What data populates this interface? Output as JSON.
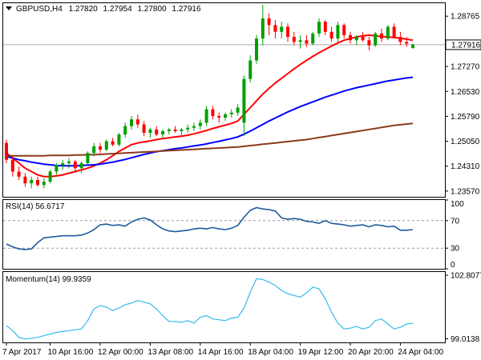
{
  "header": {
    "symbol_tf": "GBPUSD,H4",
    "open": "1.27820",
    "high": "1.27954",
    "low": "1.27800",
    "close": "1.27916"
  },
  "colors": {
    "bull": "#00a000",
    "bear": "#ff0000",
    "sma20": "#ff0000",
    "sma50": "#0000ff",
    "sma200": "#8b3a1a",
    "rsi": "#1e5aa0",
    "momentum": "#33bbee",
    "grid": "#c8c8c8",
    "price_tag_bg": "#ffffff"
  },
  "chart_data": [
    {
      "type": "candlestick",
      "title": "GBPUSD,H4",
      "ylim": [
        1.234,
        1.2915
      ],
      "y_ticks": [
        "1.28765",
        "1.27916",
        "1.27270",
        "1.26530",
        "1.25790",
        "1.25050",
        "1.24310",
        "1.23570"
      ],
      "current_price": "1.27916",
      "candles": [
        [
          1.25,
          1.251,
          1.244,
          1.245
        ],
        [
          1.245,
          1.246,
          1.24,
          1.2415
        ],
        [
          1.2415,
          1.243,
          1.239,
          1.24
        ],
        [
          1.24,
          1.241,
          1.237,
          1.238
        ],
        [
          1.238,
          1.24,
          1.2365,
          1.239
        ],
        [
          1.239,
          1.24,
          1.237,
          1.2375
        ],
        [
          1.2375,
          1.2395,
          1.2365,
          1.2385
        ],
        [
          1.2385,
          1.242,
          1.238,
          1.2415
        ],
        [
          1.2415,
          1.244,
          1.2405,
          1.2435
        ],
        [
          1.2435,
          1.245,
          1.242,
          1.244
        ],
        [
          1.244,
          1.2455,
          1.2425,
          1.2445
        ],
        [
          1.2445,
          1.245,
          1.2415,
          1.2425
        ],
        [
          1.2425,
          1.2445,
          1.241,
          1.244
        ],
        [
          1.244,
          1.2475,
          1.2435,
          1.247
        ],
        [
          1.247,
          1.25,
          1.246,
          1.249
        ],
        [
          1.249,
          1.25,
          1.247,
          1.248
        ],
        [
          1.248,
          1.251,
          1.2475,
          1.2505
        ],
        [
          1.2505,
          1.2515,
          1.249,
          1.2495
        ],
        [
          1.2495,
          1.253,
          1.249,
          1.2525
        ],
        [
          1.2525,
          1.256,
          1.2515,
          1.255
        ],
        [
          1.255,
          1.258,
          1.254,
          1.257
        ],
        [
          1.257,
          1.2585,
          1.2545,
          1.2555
        ],
        [
          1.2555,
          1.2565,
          1.252,
          1.253
        ],
        [
          1.253,
          1.2545,
          1.2515,
          1.254
        ],
        [
          1.254,
          1.255,
          1.252,
          1.2525
        ],
        [
          1.2525,
          1.254,
          1.2515,
          1.2535
        ],
        [
          1.2535,
          1.2545,
          1.2525,
          1.254
        ],
        [
          1.254,
          1.255,
          1.253,
          1.2535
        ],
        [
          1.2535,
          1.2545,
          1.252,
          1.254
        ],
        [
          1.254,
          1.2555,
          1.253,
          1.2545
        ],
        [
          1.2545,
          1.256,
          1.2535,
          1.255
        ],
        [
          1.255,
          1.257,
          1.254,
          1.256
        ],
        [
          1.256,
          1.261,
          1.255,
          1.26
        ],
        [
          1.26,
          1.261,
          1.257,
          1.258
        ],
        [
          1.258,
          1.259,
          1.256,
          1.2575
        ],
        [
          1.2575,
          1.259,
          1.2565,
          1.2585
        ],
        [
          1.2585,
          1.26,
          1.2575,
          1.259
        ],
        [
          1.259,
          1.2615,
          1.258,
          1.2605
        ],
        [
          1.256,
          1.27,
          1.252,
          1.269
        ],
        [
          1.269,
          1.276,
          1.268,
          1.2745
        ],
        [
          1.2745,
          1.282,
          1.2735,
          1.281
        ],
        [
          1.281,
          1.291,
          1.279,
          1.287
        ],
        [
          1.287,
          1.2885,
          1.282,
          1.285
        ],
        [
          1.285,
          1.2865,
          1.281,
          1.283
        ],
        [
          1.283,
          1.286,
          1.281,
          1.2845
        ],
        [
          1.2845,
          1.2855,
          1.28,
          1.2815
        ],
        [
          1.2815,
          1.283,
          1.279,
          1.28
        ],
        [
          1.28,
          1.282,
          1.278,
          1.2805
        ],
        [
          1.2805,
          1.282,
          1.2785,
          1.2795
        ],
        [
          1.2795,
          1.283,
          1.279,
          1.2825
        ],
        [
          1.2825,
          1.287,
          1.2815,
          1.286
        ],
        [
          1.286,
          1.2865,
          1.282,
          1.283
        ],
        [
          1.283,
          1.2845,
          1.28,
          1.281
        ],
        [
          1.281,
          1.286,
          1.28,
          1.285
        ],
        [
          1.285,
          1.2855,
          1.281,
          1.282
        ],
        [
          1.282,
          1.283,
          1.2795,
          1.2805
        ],
        [
          1.2805,
          1.282,
          1.279,
          1.2815
        ],
        [
          1.2815,
          1.283,
          1.28,
          1.2805
        ],
        [
          1.2805,
          1.2815,
          1.2775,
          1.279
        ],
        [
          1.279,
          1.283,
          1.2785,
          1.2825
        ],
        [
          1.2825,
          1.284,
          1.28,
          1.281
        ],
        [
          1.281,
          1.285,
          1.2805,
          1.2845
        ],
        [
          1.2845,
          1.2855,
          1.281,
          1.2815
        ],
        [
          1.2815,
          1.283,
          1.279,
          1.28
        ],
        [
          1.28,
          1.2815,
          1.2785,
          1.2795
        ],
        [
          1.2782,
          1.2795,
          1.278,
          1.2792
        ]
      ],
      "series": [
        {
          "values": [
            1.247,
            1.2455,
            1.244,
            1.2425,
            1.2415,
            1.2405,
            1.24,
            1.24,
            1.2402,
            1.2405,
            1.241,
            1.2415,
            1.242,
            1.2425,
            1.2432,
            1.244,
            1.245,
            1.2462,
            1.2475,
            1.2485,
            1.2495,
            1.25,
            1.2503,
            1.2506,
            1.251,
            1.2513,
            1.2515,
            1.2518,
            1.252,
            1.2523,
            1.2527,
            1.2532,
            1.2537,
            1.2543,
            1.2548,
            1.2553,
            1.2558,
            1.2565,
            1.2585,
            1.2605,
            1.2625,
            1.2645,
            1.2662,
            1.2678,
            1.2692,
            1.2706,
            1.272,
            1.2733,
            1.2745,
            1.2757,
            1.2768,
            1.2778,
            1.2788,
            1.2797,
            1.2805,
            1.281,
            1.2815,
            1.2818,
            1.282,
            1.2818,
            1.2816,
            1.2815,
            1.2813,
            1.2811,
            1.2808,
            1.2805
          ]
        },
        {
          "values": [
            1.246,
            1.2455,
            1.245,
            1.2447,
            1.2443,
            1.244,
            1.2437,
            1.2435,
            1.2433,
            1.2432,
            1.2432,
            1.2432,
            1.2433,
            1.2434,
            1.2435,
            1.2437,
            1.244,
            1.2443,
            1.2447,
            1.2451,
            1.2456,
            1.2461,
            1.2466,
            1.247,
            1.2474,
            1.2477,
            1.248,
            1.2483,
            1.2485,
            1.2488,
            1.2491,
            1.2494,
            1.2497,
            1.2501,
            1.2505,
            1.2509,
            1.2513,
            1.2518,
            1.2526,
            1.2535,
            1.2545,
            1.2555,
            1.2565,
            1.2574,
            1.2583,
            1.2592,
            1.26,
            1.2608,
            1.2615,
            1.2622,
            1.2629,
            1.2636,
            1.2642,
            1.2648,
            1.2654,
            1.2659,
            1.2664,
            1.2668,
            1.2672,
            1.2676,
            1.268,
            1.2684,
            1.2687,
            1.269,
            1.2693,
            1.2695
          ]
        },
        {
          "values": [
            1.2462,
            1.2462,
            1.2462,
            1.2462,
            1.2462,
            1.2462,
            1.2462,
            1.2463,
            1.2463,
            1.2463,
            1.2463,
            1.2464,
            1.2464,
            1.2465,
            1.2465,
            1.2466,
            1.2467,
            1.2468,
            1.2469,
            1.247,
            1.2471,
            1.2472,
            1.2473,
            1.2474,
            1.2475,
            1.2476,
            1.2477,
            1.2478,
            1.2479,
            1.248,
            1.2481,
            1.2482,
            1.2483,
            1.2484,
            1.2485,
            1.2486,
            1.2487,
            1.2488,
            1.249,
            1.2492,
            1.2494,
            1.2496,
            1.2498,
            1.25,
            1.2502,
            1.2504,
            1.2506,
            1.2508,
            1.251,
            1.2513,
            1.2516,
            1.2519,
            1.2522,
            1.2525,
            1.2528,
            1.2531,
            1.2534,
            1.2537,
            1.254,
            1.2543,
            1.2546,
            1.2549,
            1.2552,
            1.2554,
            1.2556,
            1.2558
          ]
        }
      ]
    },
    {
      "type": "line",
      "title": "RSI(14) 56.6717",
      "ylim": [
        0,
        100
      ],
      "y_ticks": [
        "100",
        "70",
        "30",
        "0"
      ],
      "levels": [
        70,
        30
      ],
      "series": [
        {
          "values": [
            36,
            32,
            29,
            28,
            29,
            38,
            45,
            46,
            47,
            48,
            48,
            48,
            49,
            52,
            57,
            64,
            65,
            63,
            64,
            62,
            68,
            72,
            74,
            71,
            64,
            58,
            55,
            54,
            55,
            56,
            58,
            59,
            58,
            60,
            58,
            57,
            59,
            63,
            75,
            85,
            89,
            87,
            86,
            84,
            74,
            72,
            73,
            72,
            69,
            68,
            66,
            70,
            66,
            65,
            64,
            62,
            63,
            64,
            61,
            64,
            63,
            61,
            62,
            56,
            56,
            57
          ]
        }
      ]
    },
    {
      "type": "line",
      "title": "Momentum(14) 99.9359",
      "ylim": [
        98.8,
        103.0
      ],
      "y_ticks": [
        "102.8077",
        "99.0138"
      ],
      "series": [
        {
          "values": [
            99.8,
            99.5,
            99.1,
            99.0,
            99.05,
            99.1,
            99.2,
            99.3,
            99.4,
            99.45,
            99.5,
            99.55,
            99.6,
            100.1,
            100.8,
            101.0,
            100.9,
            100.7,
            100.85,
            101.05,
            101.15,
            101.3,
            101.2,
            101.1,
            100.8,
            100.4,
            100.05,
            100.05,
            100.0,
            100.1,
            99.95,
            100.3,
            100.4,
            100.2,
            100.15,
            100.1,
            100.25,
            100.3,
            100.85,
            101.8,
            102.6,
            102.55,
            102.4,
            102.2,
            101.9,
            101.7,
            101.6,
            101.5,
            101.75,
            102.1,
            102.0,
            101.4,
            100.6,
            99.95,
            99.6,
            99.65,
            99.75,
            99.6,
            99.7,
            100.1,
            100.2,
            99.9,
            99.6,
            99.7,
            99.9,
            99.94
          ]
        }
      ]
    }
  ],
  "x_axis": {
    "labels": [
      "7 Apr 2017",
      "10 Apr 16:00",
      "12 Apr 00:00",
      "13 Apr 08:00",
      "14 Apr 16:00",
      "18 Apr 04:00",
      "19 Apr 12:00",
      "20 Apr 20:00",
      "24 Apr 04:00"
    ],
    "label_candle_index": [
      0,
      7,
      15,
      23,
      31,
      39,
      47,
      55,
      63
    ]
  }
}
